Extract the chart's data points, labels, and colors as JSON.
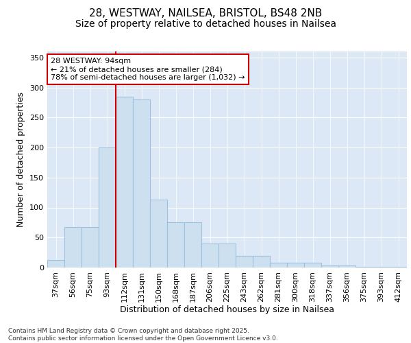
{
  "title_line1": "28, WESTWAY, NAILSEA, BRISTOL, BS48 2NB",
  "title_line2": "Size of property relative to detached houses in Nailsea",
  "xlabel": "Distribution of detached houses by size in Nailsea",
  "ylabel": "Number of detached properties",
  "categories": [
    "37sqm",
    "56sqm",
    "75sqm",
    "93sqm",
    "112sqm",
    "131sqm",
    "150sqm",
    "168sqm",
    "187sqm",
    "206sqm",
    "225sqm",
    "243sqm",
    "262sqm",
    "281sqm",
    "300sqm",
    "318sqm",
    "337sqm",
    "356sqm",
    "375sqm",
    "393sqm",
    "412sqm"
  ],
  "values": [
    13,
    68,
    68,
    200,
    285,
    280,
    113,
    75,
    75,
    40,
    40,
    20,
    20,
    8,
    8,
    8,
    3,
    3,
    1,
    1,
    1
  ],
  "bar_color": "#cce0f0",
  "bar_edge_color": "#a0c0e0",
  "vline_index": 3,
  "vline_color": "#cc0000",
  "annotation_text": "28 WESTWAY: 94sqm\n← 21% of detached houses are smaller (284)\n78% of semi-detached houses are larger (1,032) →",
  "annotation_box_color": "#cc0000",
  "annotation_fill": "white",
  "ylim": [
    0,
    360
  ],
  "yticks": [
    0,
    50,
    100,
    150,
    200,
    250,
    300,
    350
  ],
  "background_color": "#dce8f5",
  "footer_text": "Contains HM Land Registry data © Crown copyright and database right 2025.\nContains public sector information licensed under the Open Government Licence v3.0.",
  "title_fontsize": 11,
  "subtitle_fontsize": 10,
  "axis_label_fontsize": 9,
  "tick_fontsize": 8,
  "annotation_fontsize": 8
}
